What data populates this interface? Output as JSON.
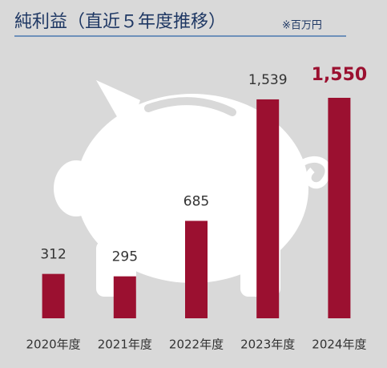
{
  "chart_data": {
    "type": "bar",
    "title": "純利益（直近５年度推移）",
    "subtitle": "※百万円",
    "categories": [
      "2020年度",
      "2021年度",
      "2022年度",
      "2023年度",
      "2024年度"
    ],
    "values": [
      312,
      295,
      685,
      1539,
      1550
    ],
    "value_labels": [
      "312",
      "295",
      "685",
      "1,539",
      "1,550"
    ],
    "color": "#9b1030"
  }
}
